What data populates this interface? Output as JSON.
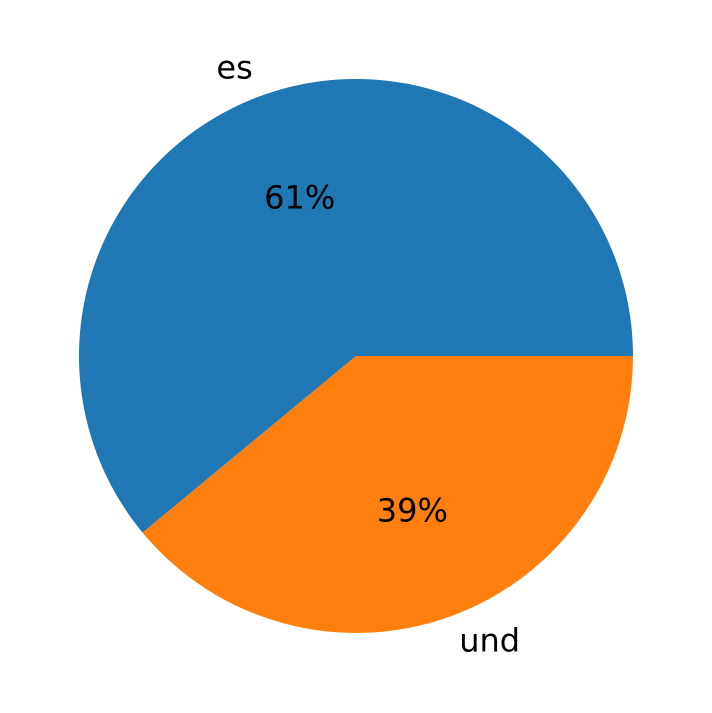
{
  "chart_data": {
    "type": "pie",
    "categories": [
      "es",
      "und"
    ],
    "values": [
      61,
      39
    ],
    "value_labels": [
      "61%",
      "39%"
    ],
    "colors": [
      "#1f77b4",
      "#ff7f0e"
    ]
  }
}
